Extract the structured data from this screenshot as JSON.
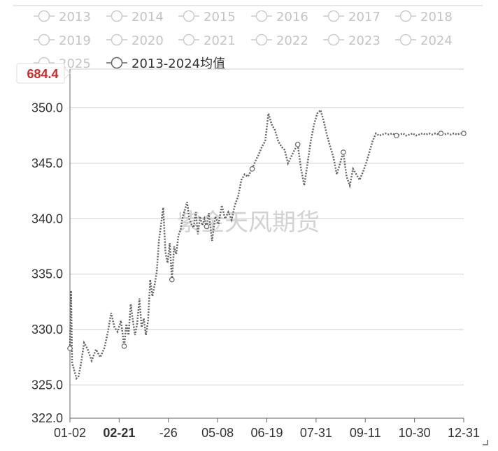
{
  "colors": {
    "line": "#666666",
    "inactive": "#cccccc",
    "grid": "#cfcfcf",
    "highlight": "#cc2a2a"
  },
  "legend": [
    {
      "label": "2013",
      "active": false
    },
    {
      "label": "2014",
      "active": false
    },
    {
      "label": "2015",
      "active": false
    },
    {
      "label": "2016",
      "active": false
    },
    {
      "label": "2017",
      "active": false
    },
    {
      "label": "2018",
      "active": false
    },
    {
      "label": "2019",
      "active": false
    },
    {
      "label": "2020",
      "active": false
    },
    {
      "label": "2021",
      "active": false
    },
    {
      "label": "2022",
      "active": false
    },
    {
      "label": "2023",
      "active": false
    },
    {
      "label": "2024",
      "active": false
    },
    {
      "label": "2025",
      "active": false
    },
    {
      "label": "2013-2024均值",
      "active": true
    }
  ],
  "watermark": "紫金天风期货",
  "chart_data": {
    "type": "line",
    "title": "",
    "xlabel": "",
    "ylabel": "",
    "ylim": [
      322.0,
      353.5
    ],
    "y_ticks": [
      "322.0",
      "325.0",
      "330.0",
      "335.0",
      "340.0",
      "345.0",
      "350.0"
    ],
    "y_pointer_label": "684.4",
    "x_ticks": [
      "01-02",
      "02-21",
      "-26",
      "05-08",
      "06-19",
      "07-31",
      "09-11",
      "10-30",
      "12-31"
    ],
    "x_highlight": "02-21",
    "grid": true,
    "legend_position": "top",
    "series": [
      {
        "name": "2013-2024均值",
        "line_style": "dotted",
        "marker_dates": [
          "01-02",
          "02-21",
          "04-06",
          "05-08",
          "06-19",
          "07-31",
          "09-11",
          "10-30",
          "12-10",
          "12-31"
        ],
        "x": [
          "01-02",
          "01-03",
          "01-04",
          "01-06",
          "01-08",
          "01-10",
          "01-12",
          "01-15",
          "01-18",
          "01-22",
          "01-26",
          "01-30",
          "02-03",
          "02-06",
          "02-09",
          "02-12",
          "02-15",
          "02-18",
          "02-21",
          "02-23",
          "02-25",
          "02-27",
          "03-01",
          "03-03",
          "03-05",
          "03-07",
          "03-09",
          "03-11",
          "03-13",
          "03-15",
          "03-17",
          "03-19",
          "03-21",
          "03-23",
          "03-25",
          "03-27",
          "03-29",
          "03-31",
          "04-02",
          "04-04",
          "04-06",
          "04-08",
          "04-10",
          "04-12",
          "04-14",
          "04-16",
          "04-18",
          "04-20",
          "04-22",
          "04-24",
          "04-26",
          "04-28",
          "04-30",
          "05-02",
          "05-04",
          "05-06",
          "05-08",
          "05-10",
          "05-13",
          "05-16",
          "05-19",
          "05-22",
          "05-25",
          "05-28",
          "05-31",
          "06-03",
          "06-06",
          "06-09",
          "06-12",
          "06-15",
          "06-19",
          "06-22",
          "06-25",
          "06-28",
          "07-01",
          "07-04",
          "07-07",
          "07-10",
          "07-13",
          "07-16",
          "07-19",
          "07-22",
          "07-25",
          "07-28",
          "07-31",
          "08-03",
          "08-06",
          "08-09",
          "08-12",
          "08-15",
          "08-18",
          "08-21",
          "08-24",
          "08-27",
          "08-30",
          "09-02",
          "09-05",
          "09-08",
          "09-11",
          "09-14",
          "09-17",
          "09-20",
          "09-23",
          "09-26",
          "09-29",
          "10-02",
          "10-05",
          "10-08",
          "10-11",
          "10-14",
          "10-17",
          "10-20",
          "10-23",
          "10-26",
          "10-30",
          "11-02",
          "11-05",
          "11-08",
          "11-11",
          "11-14",
          "11-17",
          "11-20",
          "11-23",
          "11-26",
          "11-29",
          "12-02",
          "12-05",
          "12-08",
          "12-10",
          "12-13",
          "12-16",
          "12-19",
          "12-22",
          "12-25",
          "12-28",
          "12-31"
        ],
        "values": [
          328.3,
          333.5,
          327.0,
          326.3,
          325.6,
          325.8,
          326.8,
          328.8,
          328.3,
          327.2,
          328.2,
          327.5,
          328.4,
          329.8,
          331.5,
          330.2,
          329.8,
          330.8,
          328.5,
          330.5,
          329.5,
          332.3,
          330.8,
          329.5,
          330.6,
          332.8,
          330.2,
          331.0,
          329.5,
          330.8,
          334.5,
          333.0,
          334.0,
          335.2,
          338.0,
          339.5,
          341.0,
          337.0,
          336.0,
          337.8,
          334.5,
          337.5,
          336.8,
          338.5,
          339.0,
          340.2,
          340.8,
          341.5,
          340.0,
          339.5,
          339.2,
          340.6,
          338.6,
          340.2,
          339.4,
          340.0,
          339.3,
          340.5,
          338.0,
          340.2,
          339.5,
          341.2,
          340.0,
          340.6,
          339.9,
          341.2,
          342.0,
          343.5,
          344.0,
          343.8,
          344.5,
          345.2,
          345.8,
          346.5,
          347.0,
          349.5,
          348.5,
          348.0,
          347.0,
          346.5,
          346.2,
          345.0,
          345.6,
          346.2,
          346.7,
          344.5,
          343.0,
          345.0,
          347.0,
          348.5,
          349.5,
          349.8,
          348.8,
          347.5,
          346.5,
          345.5,
          344.0,
          345.0,
          346.0,
          343.8,
          343.0,
          344.5,
          344.0,
          343.5,
          344.2,
          345.0,
          346.0,
          347.0,
          347.7,
          347.5,
          347.6,
          347.7,
          347.6,
          347.7,
          347.5,
          347.6,
          347.7,
          347.5,
          347.6,
          347.7,
          347.5,
          347.6,
          347.7,
          347.6,
          347.7,
          347.6,
          347.7,
          347.6,
          347.7,
          347.6,
          347.7,
          347.6,
          347.7,
          347.6,
          347.7,
          347.7
        ]
      }
    ]
  }
}
